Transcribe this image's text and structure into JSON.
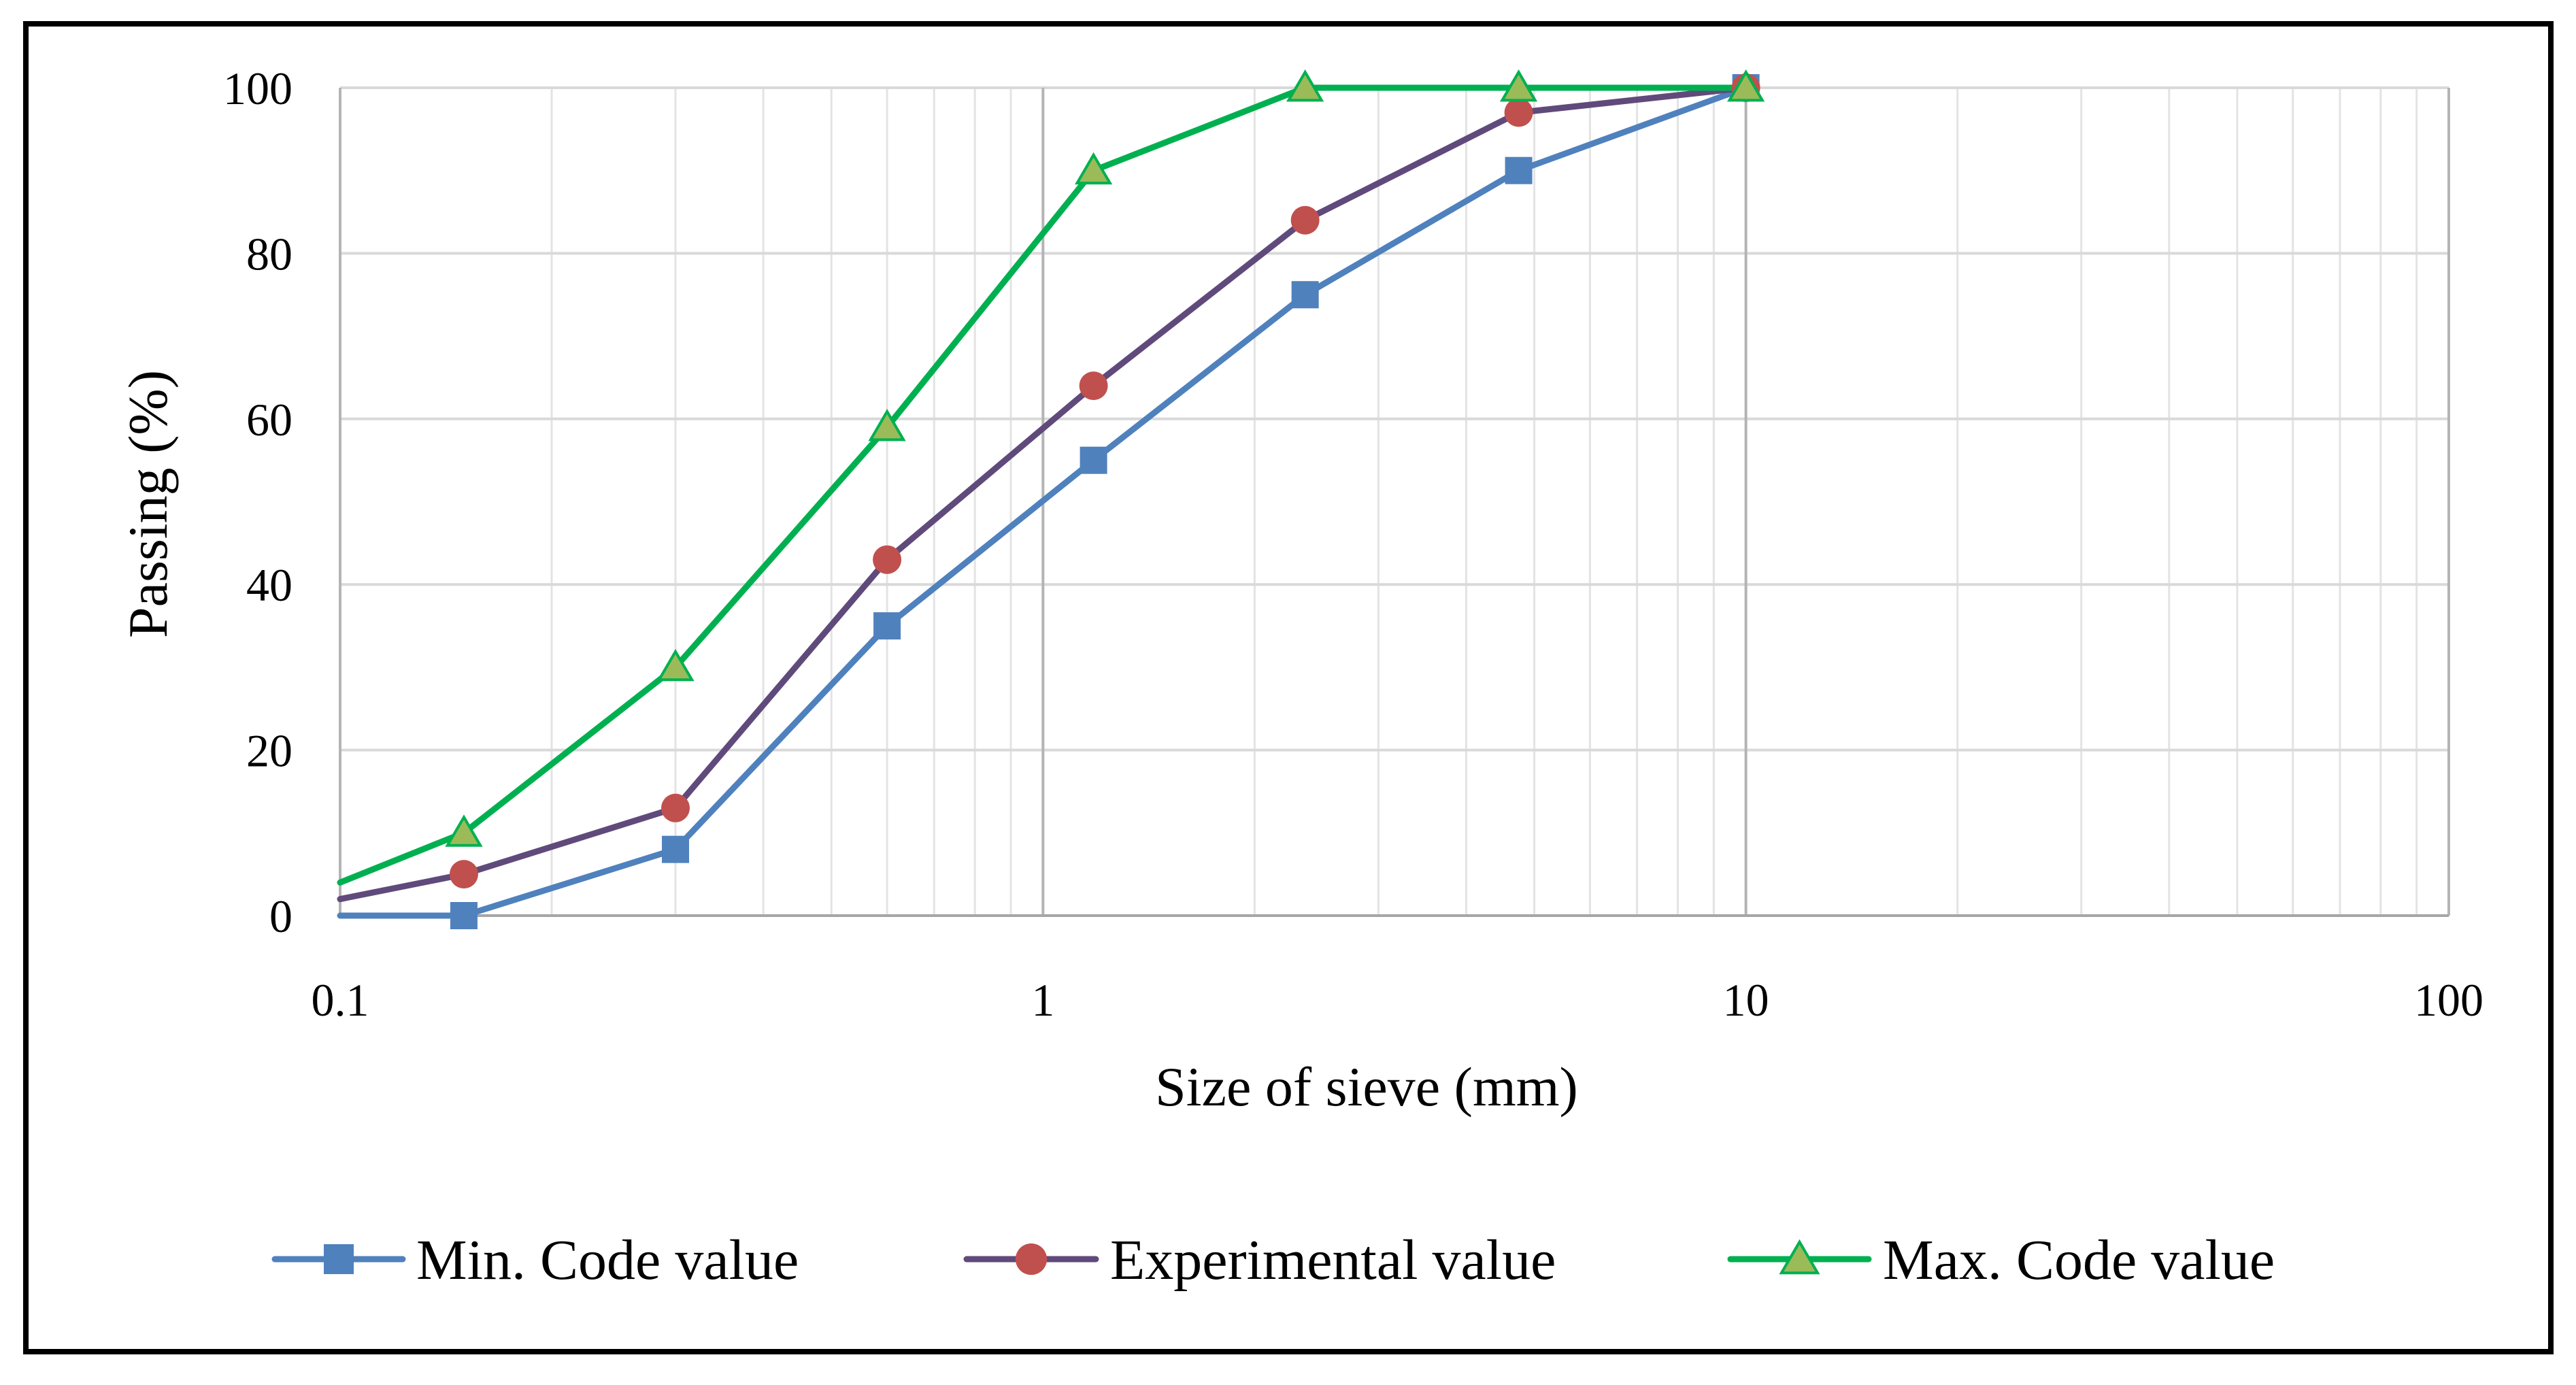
{
  "chart_data": {
    "type": "line",
    "x_scale": "log",
    "xlabel": "Size of sieve (mm)",
    "ylabel": "Passing (%)",
    "xlim": [
      0.1,
      100
    ],
    "ylim": [
      0,
      100
    ],
    "grid": true,
    "legend_position": "bottom",
    "x_tick_values": [
      0.1,
      1,
      10,
      100
    ],
    "x_tick_labels": [
      "0.1",
      "1",
      "10",
      "100"
    ],
    "y_tick_values": [
      0,
      20,
      40,
      60,
      80,
      100
    ],
    "y_tick_labels": [
      "0",
      "20",
      "40",
      "60",
      "80",
      "100"
    ],
    "series": [
      {
        "name": "Min. Code value",
        "color": "#4f81bd",
        "marker": "square",
        "x": [
          0.1,
          0.15,
          0.3,
          0.6,
          1.18,
          2.36,
          4.75,
          10
        ],
        "values": [
          0,
          0,
          8,
          35,
          55,
          75,
          90,
          100
        ]
      },
      {
        "name": "Experimental value",
        "color": "#604a7b",
        "marker_color": "#c0504d",
        "marker": "circle",
        "x": [
          0.1,
          0.15,
          0.3,
          0.6,
          1.18,
          2.36,
          4.75,
          10
        ],
        "values": [
          2,
          5,
          13,
          43,
          64,
          84,
          97,
          100
        ]
      },
      {
        "name": "Max. Code value",
        "color": "#00b050",
        "marker_color": "#9bbb59",
        "marker": "triangle",
        "x": [
          0.1,
          0.15,
          0.3,
          0.6,
          1.18,
          2.36,
          4.75,
          10
        ],
        "values": [
          4,
          10,
          30,
          59,
          90,
          100,
          100,
          100
        ]
      }
    ]
  }
}
